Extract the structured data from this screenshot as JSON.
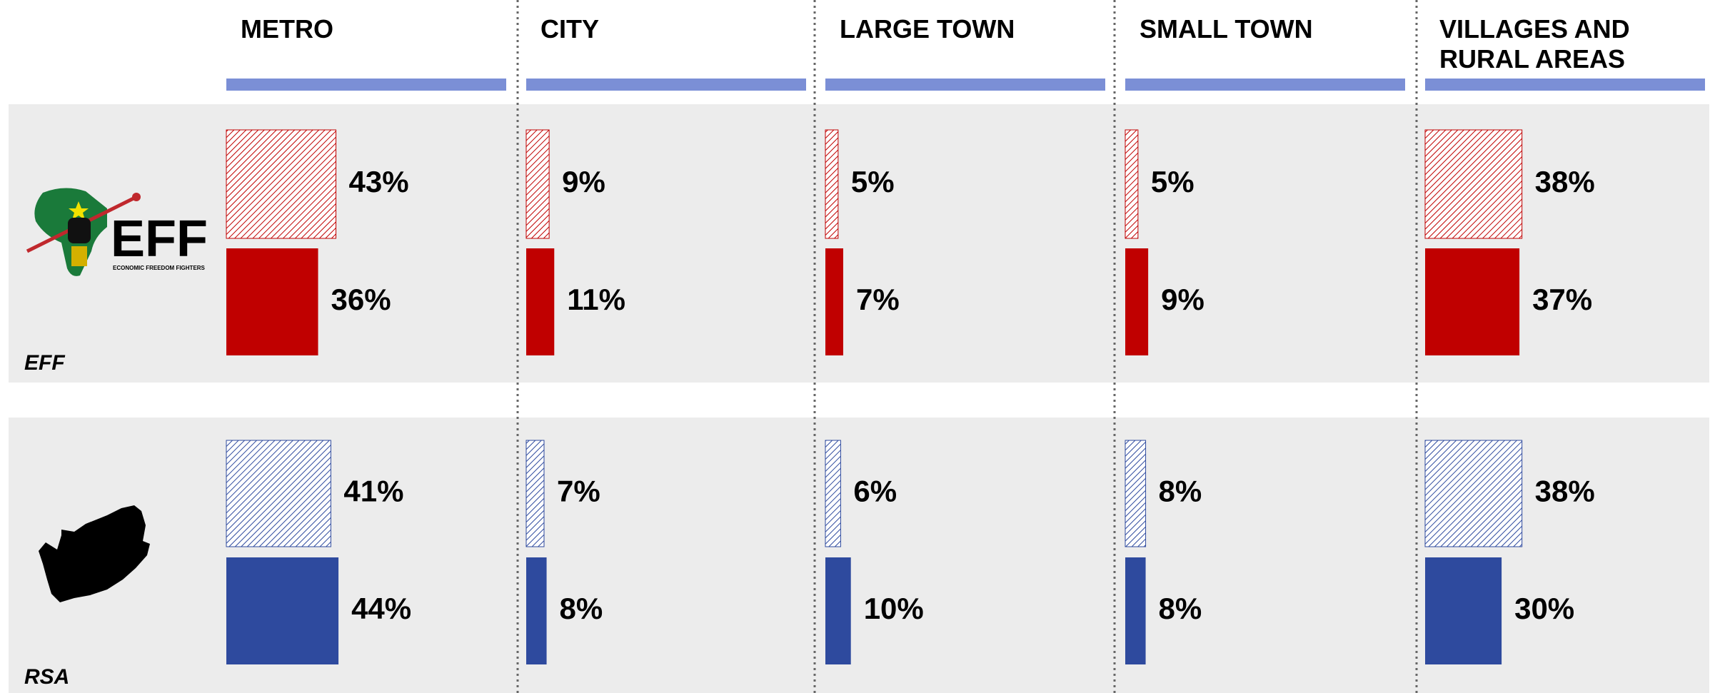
{
  "chart_data": {
    "type": "bar",
    "categories": [
      "METRO",
      "CITY",
      "LARGE TOWN",
      "SMALL TOWN",
      "VILLAGES AND RURAL AREAS"
    ],
    "header_color": "#7b8fd6",
    "logo_text": "EFF",
    "logo_subtext": "ECONOMIC FREEDOM FIGHTERS",
    "groups": [
      {
        "label": "EFF",
        "series": [
          {
            "color": "#c00000",
            "pattern": "hatch",
            "values": [
              43,
              9,
              5,
              5,
              38
            ],
            "value_labels": [
              "43%",
              "9%",
              "5%",
              "5%",
              "38%"
            ]
          },
          {
            "color": "#c00000",
            "pattern": "solid",
            "values": [
              36,
              11,
              7,
              9,
              37
            ],
            "value_labels": [
              "36%",
              "11%",
              "7%",
              "9%",
              "37%"
            ]
          }
        ]
      },
      {
        "label": "RSA",
        "series": [
          {
            "color": "#2e4a9e",
            "pattern": "hatch",
            "values": [
              41,
              7,
              6,
              8,
              38
            ],
            "value_labels": [
              "41%",
              "7%",
              "6%",
              "8%",
              "38%"
            ]
          },
          {
            "color": "#2e4a9e",
            "pattern": "solid",
            "values": [
              44,
              8,
              10,
              8,
              30
            ],
            "value_labels": [
              "44%",
              "8%",
              "10%",
              "8%",
              "30%"
            ]
          }
        ]
      }
    ]
  }
}
